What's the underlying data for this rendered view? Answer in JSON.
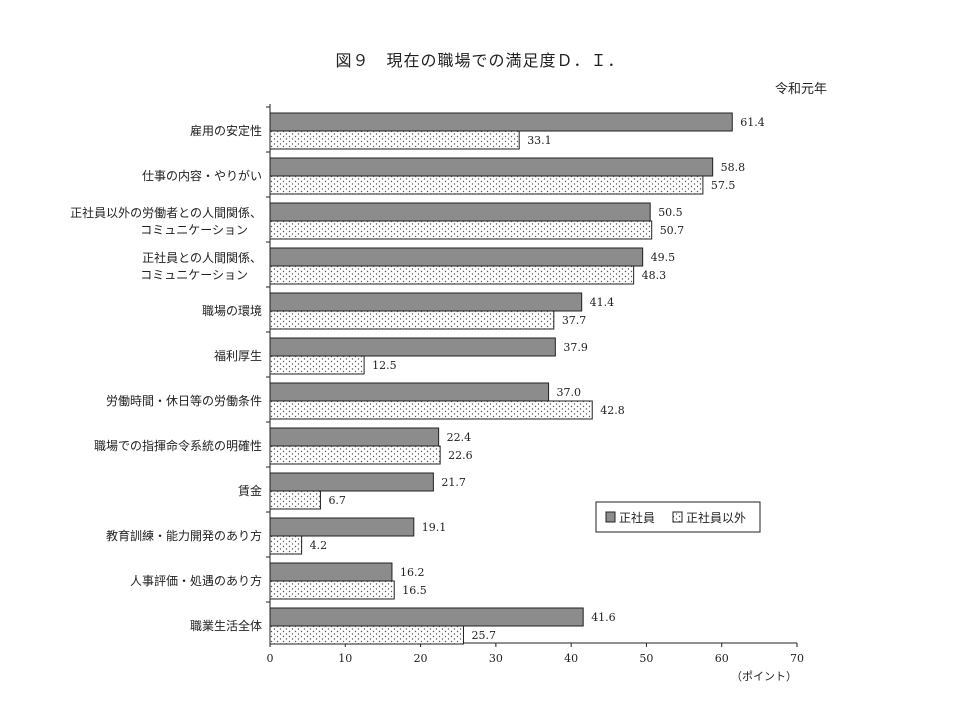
{
  "title": "図９　現在の職場での満足度Ｄ．Ｉ．",
  "era": "令和元年",
  "colors": {
    "regular": "#8c8c8c",
    "non_regular_bg": "#ffffff",
    "non_regular_dot": "#555555",
    "stroke": "#222222"
  },
  "chart_data": {
    "type": "bar",
    "orientation": "horizontal",
    "title": "図９　現在の職場での満足度Ｄ．Ｉ．",
    "xlabel": "（ポイント）",
    "xlim": [
      0,
      70
    ],
    "xticks": [
      0,
      10,
      20,
      30,
      40,
      50,
      60,
      70
    ],
    "legend_position": "right",
    "categories": [
      "雇用の安定性",
      "仕事の内容・やりがい",
      "正社員以外の労働者との人間関係、\nコミュニケーション",
      "正社員との人間関係、\nコミュニケーション",
      "職場の環境",
      "福利厚生",
      "労働時間・休日等の労働条件",
      "職場での指揮命令系統の明確性",
      "賃金",
      "教育訓練・能力開発のあり方",
      "人事評価・処遇のあり方",
      "職業生活全体"
    ],
    "series": [
      {
        "name": "正社員",
        "values": [
          61.4,
          58.8,
          50.5,
          49.5,
          41.4,
          37.9,
          37.0,
          22.4,
          21.7,
          19.1,
          16.2,
          41.6
        ]
      },
      {
        "name": "正社員以外",
        "values": [
          33.1,
          57.5,
          50.7,
          48.3,
          37.7,
          12.5,
          42.8,
          22.6,
          6.7,
          4.2,
          16.5,
          25.7
        ]
      }
    ]
  }
}
